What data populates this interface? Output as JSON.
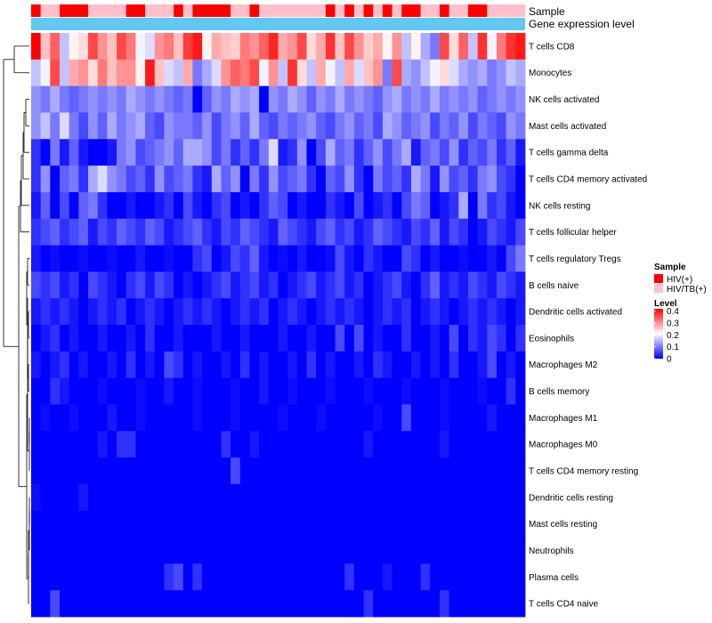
{
  "chart_data": {
    "type": "heatmap",
    "title": "",
    "annotations": {
      "sample_title": "Sample",
      "gene_title": "Gene expression level"
    },
    "sample_groups": [
      "HIV(+)",
      "HIV/TB(+)",
      "HIV/TB(+)",
      "HIV(+)",
      "HIV(+)",
      "HIV(+)",
      "HIV/TB(+)",
      "HIV/TB(+)",
      "HIV/TB(+)",
      "HIV/TB(+)",
      "HIV(+)",
      "HIV(+)",
      "HIV/TB(+)",
      "HIV/TB(+)",
      "HIV/TB(+)",
      "HIV(+)",
      "HIV/TB(+)",
      "HIV(+)",
      "HIV(+)",
      "HIV(+)",
      "HIV(+)",
      "HIV/TB(+)",
      "HIV/TB(+)",
      "HIV(+)",
      "HIV/TB(+)",
      "HIV/TB(+)",
      "HIV/TB(+)",
      "HIV/TB(+)",
      "HIV/TB(+)",
      "HIV/TB(+)",
      "HIV/TB(+)",
      "HIV(+)",
      "HIV/TB(+)",
      "HIV(+)",
      "HIV/TB(+)",
      "HIV(+)",
      "HIV/TB(+)",
      "HIV(+)",
      "HIV/TB(+)",
      "HIV(+)",
      "HIV(+)",
      "HIV/TB(+)",
      "HIV/TB(+)",
      "HIV(+)",
      "HIV/TB(+)",
      "HIV/TB(+)",
      "HIV(+)",
      "HIV(+)",
      "HIV/TB(+)",
      "HIV/TB(+)",
      "HIV/TB(+)",
      "HIV/TB(+)"
    ],
    "rows": [
      "T cells CD8",
      "Monocytes",
      "NK cells activated",
      "Mast cells activated",
      "T cells gamma delta",
      "T cells CD4 memory activated",
      "NK cells resting",
      "T cells follicular helper",
      "T cells regulatory  Tregs",
      "B cells naive",
      "Dendritic cells activated",
      "Eosinophils",
      "Macrophages M2",
      "B cells memory",
      "Macrophages M1",
      "Macrophages M0",
      "T cells CD4 memory resting",
      "Dendritic cells resting",
      "Mast cells resting",
      "Neutrophils",
      "Plasma cells",
      "T cells CD4 naive"
    ],
    "n_columns": 52,
    "legend": {
      "sample_title": "Sample",
      "sample_items": [
        {
          "label": "HIV(+)",
          "color": "#ff0000"
        },
        {
          "label": "HIV/TB(+)",
          "color": "#ffc0cb"
        }
      ],
      "level_title": "Level",
      "level_ticks": [
        "0.4",
        "0.3",
        "0.2",
        "0.1",
        "0"
      ],
      "level_tick_values": [
        0.4,
        0.3,
        0.2,
        0.1,
        0.0
      ],
      "range": [
        0,
        0.42
      ]
    },
    "colors": {
      "low": "#0000ff",
      "mid": "#ffffff",
      "high": "#ff0000",
      "gene_bar": "#63c7f0",
      "dendrogram": "#000000"
    },
    "values": {
      "T cells CD8": [
        0.42,
        0.26,
        0.34,
        0.16,
        0.22,
        0.24,
        0.36,
        0.3,
        0.26,
        0.36,
        0.32,
        0.2,
        0.18,
        0.3,
        0.32,
        0.26,
        0.37,
        0.4,
        0.22,
        0.28,
        0.26,
        0.25,
        0.32,
        0.3,
        0.34,
        0.39,
        0.28,
        0.3,
        0.36,
        0.24,
        0.28,
        0.38,
        0.26,
        0.36,
        0.3,
        0.25,
        0.28,
        0.22,
        0.3,
        0.16,
        0.22,
        0.14,
        0.1,
        0.36,
        0.24,
        0.34,
        0.16,
        0.38,
        0.2,
        0.32,
        0.38,
        0.4
      ],
      "Monocytes": [
        0.16,
        0.2,
        0.36,
        0.16,
        0.28,
        0.3,
        0.24,
        0.32,
        0.26,
        0.3,
        0.3,
        0.22,
        0.4,
        0.26,
        0.18,
        0.16,
        0.28,
        0.1,
        0.14,
        0.18,
        0.3,
        0.34,
        0.32,
        0.36,
        0.2,
        0.3,
        0.16,
        0.38,
        0.24,
        0.16,
        0.28,
        0.2,
        0.16,
        0.28,
        0.18,
        0.26,
        0.3,
        0.1,
        0.36,
        0.14,
        0.12,
        0.16,
        0.2,
        0.24,
        0.18,
        0.14,
        0.12,
        0.14,
        0.1,
        0.12,
        0.16,
        0.14
      ],
      "NK cells activated": [
        0.12,
        0.1,
        0.14,
        0.1,
        0.08,
        0.1,
        0.12,
        0.1,
        0.12,
        0.1,
        0.14,
        0.12,
        0.1,
        0.12,
        0.1,
        0.08,
        0.1,
        0.0,
        0.08,
        0.12,
        0.1,
        0.14,
        0.12,
        0.14,
        0.0,
        0.12,
        0.1,
        0.14,
        0.12,
        0.08,
        0.12,
        0.1,
        0.14,
        0.1,
        0.12,
        0.1,
        0.08,
        0.12,
        0.14,
        0.1,
        0.12,
        0.1,
        0.14,
        0.1,
        0.12,
        0.1,
        0.12,
        0.08,
        0.1,
        0.12,
        0.1,
        0.12
      ],
      "Mast cells activated": [
        0.12,
        0.16,
        0.1,
        0.18,
        0.1,
        0.06,
        0.12,
        0.08,
        0.14,
        0.1,
        0.12,
        0.14,
        0.08,
        0.06,
        0.12,
        0.1,
        0.1,
        0.08,
        0.12,
        0.06,
        0.1,
        0.12,
        0.08,
        0.14,
        0.08,
        0.06,
        0.1,
        0.08,
        0.1,
        0.12,
        0.08,
        0.06,
        0.1,
        0.12,
        0.08,
        0.1,
        0.06,
        0.14,
        0.12,
        0.08,
        0.1,
        0.12,
        0.06,
        0.1,
        0.08,
        0.12,
        0.06,
        0.1,
        0.08,
        0.06,
        0.12,
        0.1
      ],
      "T cells gamma delta": [
        0.04,
        0.0,
        0.1,
        0.02,
        0.08,
        0.02,
        0.0,
        0.0,
        0.02,
        0.1,
        0.12,
        0.06,
        0.08,
        0.1,
        0.12,
        0.08,
        0.14,
        0.14,
        0.12,
        0.06,
        0.1,
        0.04,
        0.08,
        0.04,
        0.1,
        0.18,
        0.02,
        0.04,
        0.12,
        0.0,
        0.06,
        0.14,
        0.08,
        0.1,
        0.04,
        0.08,
        0.12,
        0.06,
        0.1,
        0.14,
        0.02,
        0.08,
        0.1,
        0.06,
        0.12,
        0.04,
        0.08,
        0.06,
        0.1,
        0.04,
        0.08,
        0.02
      ],
      "T cells CD4 memory activated": [
        0.04,
        0.12,
        0.0,
        0.08,
        0.1,
        0.04,
        0.14,
        0.18,
        0.12,
        0.1,
        0.06,
        0.08,
        0.04,
        0.12,
        0.06,
        0.08,
        0.1,
        0.04,
        0.02,
        0.14,
        0.08,
        0.12,
        0.0,
        0.1,
        0.04,
        0.12,
        0.06,
        0.08,
        0.1,
        0.04,
        0.0,
        0.08,
        0.06,
        0.12,
        0.04,
        0.0,
        0.1,
        0.06,
        0.08,
        0.04,
        0.14,
        0.1,
        0.02,
        0.12,
        0.06,
        0.08,
        0.04,
        0.1,
        0.12,
        0.06,
        0.04,
        0.0
      ],
      "NK cells resting": [
        0.02,
        0.08,
        0.0,
        0.06,
        0.0,
        0.08,
        0.1,
        0.04,
        0.0,
        0.0,
        0.02,
        0.0,
        0.0,
        0.02,
        0.04,
        0.0,
        0.06,
        0.02,
        0.0,
        0.04,
        0.06,
        0.0,
        0.02,
        0.0,
        0.04,
        0.08,
        0.06,
        0.0,
        0.02,
        0.0,
        0.0,
        0.04,
        0.02,
        0.0,
        0.06,
        0.0,
        0.02,
        0.04,
        0.0,
        0.06,
        0.1,
        0.08,
        0.0,
        0.02,
        0.04,
        0.14,
        0.0,
        0.1,
        0.04,
        0.06,
        0.02,
        0.0
      ],
      "T cells follicular helper": [
        0.04,
        0.06,
        0.08,
        0.04,
        0.06,
        0.08,
        0.02,
        0.06,
        0.04,
        0.08,
        0.06,
        0.04,
        0.08,
        0.06,
        0.02,
        0.04,
        0.06,
        0.08,
        0.04,
        0.02,
        0.06,
        0.04,
        0.08,
        0.06,
        0.04,
        0.02,
        0.08,
        0.06,
        0.04,
        0.02,
        0.06,
        0.08,
        0.04,
        0.06,
        0.02,
        0.04,
        0.08,
        0.06,
        0.04,
        0.02,
        0.06,
        0.04,
        0.08,
        0.02,
        0.06,
        0.04,
        0.0,
        0.02,
        0.06,
        0.04,
        0.02,
        0.06
      ],
      "T cells regulatory  Tregs": [
        0.02,
        0.0,
        0.01,
        0.0,
        0.0,
        0.01,
        0.0,
        0.0,
        0.01,
        0.0,
        0.0,
        0.02,
        0.0,
        0.0,
        0.01,
        0.0,
        0.0,
        0.04,
        0.06,
        0.0,
        0.02,
        0.06,
        0.04,
        0.08,
        0.02,
        0.0,
        0.01,
        0.0,
        0.02,
        0.0,
        0.0,
        0.01,
        0.06,
        0.02,
        0.0,
        0.04,
        0.02,
        0.0,
        0.0,
        0.06,
        0.04,
        0.0,
        0.02,
        0.0,
        0.0,
        0.01,
        0.0,
        0.0,
        0.02,
        0.0,
        0.06,
        0.1
      ],
      "B cells naive": [
        0.06,
        0.04,
        0.06,
        0.02,
        0.04,
        0.0,
        0.06,
        0.04,
        0.02,
        0.0,
        0.04,
        0.06,
        0.02,
        0.06,
        0.04,
        0.0,
        0.02,
        0.0,
        0.02,
        0.04,
        0.06,
        0.02,
        0.04,
        0.06,
        0.02,
        0.04,
        0.0,
        0.02,
        0.04,
        0.06,
        0.02,
        0.04,
        0.06,
        0.02,
        0.04,
        0.0,
        0.02,
        0.04,
        0.06,
        0.02,
        0.0,
        0.04,
        0.08,
        0.02,
        0.04,
        0.02,
        0.06,
        0.04,
        0.02,
        0.06,
        0.04,
        0.02
      ],
      "Dendritic cells activated": [
        0.02,
        0.04,
        0.02,
        0.04,
        0.02,
        0.0,
        0.02,
        0.04,
        0.02,
        0.04,
        0.0,
        0.02,
        0.04,
        0.02,
        0.0,
        0.02,
        0.04,
        0.02,
        0.04,
        0.02,
        0.0,
        0.02,
        0.04,
        0.02,
        0.04,
        0.0,
        0.02,
        0.04,
        0.02,
        0.0,
        0.02,
        0.04,
        0.02,
        0.04,
        0.02,
        0.0,
        0.02,
        0.04,
        0.02,
        0.04,
        0.0,
        0.02,
        0.04,
        0.02,
        0.0,
        0.02,
        0.04,
        0.02,
        0.04,
        0.02,
        0.0,
        0.02
      ],
      "Eosinophils": [
        0.0,
        0.02,
        0.04,
        0.0,
        0.02,
        0.0,
        0.0,
        0.02,
        0.0,
        0.0,
        0.02,
        0.0,
        0.04,
        0.0,
        0.0,
        0.02,
        0.0,
        0.0,
        0.0,
        0.02,
        0.0,
        0.0,
        0.02,
        0.0,
        0.0,
        0.0,
        0.02,
        0.0,
        0.0,
        0.02,
        0.0,
        0.0,
        0.06,
        0.0,
        0.06,
        0.0,
        0.02,
        0.0,
        0.0,
        0.04,
        0.0,
        0.0,
        0.02,
        0.0,
        0.06,
        0.0,
        0.04,
        0.02,
        0.06,
        0.04,
        0.0,
        0.04
      ],
      "Macrophages M2": [
        0.02,
        0.0,
        0.02,
        0.04,
        0.0,
        0.02,
        0.0,
        0.0,
        0.02,
        0.0,
        0.04,
        0.0,
        0.02,
        0.0,
        0.06,
        0.04,
        0.0,
        0.02,
        0.0,
        0.0,
        0.02,
        0.0,
        0.04,
        0.0,
        0.02,
        0.0,
        0.0,
        0.02,
        0.0,
        0.04,
        0.0,
        0.02,
        0.0,
        0.0,
        0.02,
        0.0,
        0.04,
        0.02,
        0.0,
        0.0,
        0.02,
        0.0,
        0.02,
        0.0,
        0.04,
        0.0,
        0.0,
        0.02,
        0.06,
        0.0,
        0.02,
        0.0
      ],
      "B cells memory": [
        0.0,
        0.0,
        0.04,
        0.02,
        0.0,
        0.0,
        0.0,
        0.01,
        0.0,
        0.0,
        0.0,
        0.01,
        0.0,
        0.0,
        0.02,
        0.0,
        0.0,
        0.01,
        0.0,
        0.0,
        0.0,
        0.01,
        0.0,
        0.0,
        0.02,
        0.0,
        0.0,
        0.01,
        0.0,
        0.0,
        0.0,
        0.01,
        0.0,
        0.0,
        0.0,
        0.01,
        0.0,
        0.0,
        0.0,
        0.01,
        0.0,
        0.0,
        0.0,
        0.01,
        0.0,
        0.0,
        0.0,
        0.01,
        0.0,
        0.0,
        0.04,
        0.0
      ],
      "Macrophages M1": [
        0.0,
        0.01,
        0.0,
        0.0,
        0.01,
        0.0,
        0.0,
        0.0,
        0.02,
        0.0,
        0.0,
        0.01,
        0.0,
        0.0,
        0.0,
        0.0,
        0.0,
        0.01,
        0.0,
        0.0,
        0.0,
        0.01,
        0.0,
        0.0,
        0.0,
        0.0,
        0.01,
        0.0,
        0.0,
        0.0,
        0.01,
        0.0,
        0.0,
        0.0,
        0.0,
        0.0,
        0.01,
        0.0,
        0.0,
        0.06,
        0.0,
        0.0,
        0.0,
        0.01,
        0.0,
        0.0,
        0.0,
        0.0,
        0.02,
        0.0,
        0.0,
        0.0
      ],
      "Macrophages M0": [
        0.0,
        0.0,
        0.0,
        0.0,
        0.0,
        0.0,
        0.0,
        0.02,
        0.0,
        0.04,
        0.04,
        0.0,
        0.0,
        0.0,
        0.0,
        0.0,
        0.0,
        0.0,
        0.0,
        0.0,
        0.04,
        0.0,
        0.0,
        0.02,
        0.0,
        0.0,
        0.0,
        0.0,
        0.0,
        0.0,
        0.0,
        0.0,
        0.0,
        0.0,
        0.0,
        0.02,
        0.0,
        0.0,
        0.0,
        0.0,
        0.0,
        0.0,
        0.0,
        0.02,
        0.0,
        0.0,
        0.0,
        0.0,
        0.0,
        0.0,
        0.0,
        0.0
      ],
      "T cells CD4 memory resting": [
        0.0,
        0.0,
        0.0,
        0.0,
        0.0,
        0.0,
        0.0,
        0.0,
        0.0,
        0.0,
        0.0,
        0.0,
        0.0,
        0.0,
        0.0,
        0.0,
        0.0,
        0.0,
        0.0,
        0.0,
        0.0,
        0.06,
        0.0,
        0.0,
        0.0,
        0.0,
        0.0,
        0.0,
        0.0,
        0.0,
        0.0,
        0.0,
        0.0,
        0.0,
        0.0,
        0.0,
        0.0,
        0.0,
        0.0,
        0.0,
        0.0,
        0.0,
        0.0,
        0.0,
        0.0,
        0.0,
        0.0,
        0.0,
        0.0,
        0.0,
        0.0,
        0.0
      ],
      "Dendritic cells resting": [
        0.01,
        0.0,
        0.0,
        0.0,
        0.0,
        0.02,
        0.0,
        0.0,
        0.0,
        0.0,
        0.0,
        0.0,
        0.0,
        0.0,
        0.0,
        0.0,
        0.0,
        0.0,
        0.0,
        0.0,
        0.0,
        0.0,
        0.0,
        0.0,
        0.0,
        0.0,
        0.0,
        0.0,
        0.0,
        0.0,
        0.0,
        0.0,
        0.0,
        0.0,
        0.0,
        0.0,
        0.0,
        0.0,
        0.0,
        0.0,
        0.0,
        0.0,
        0.0,
        0.0,
        0.0,
        0.0,
        0.0,
        0.0,
        0.0,
        0.0,
        0.0,
        0.0
      ],
      "Mast cells resting": [
        0.0,
        0.0,
        0.0,
        0.0,
        0.0,
        0.0,
        0.0,
        0.0,
        0.0,
        0.0,
        0.0,
        0.0,
        0.0,
        0.0,
        0.0,
        0.0,
        0.0,
        0.0,
        0.0,
        0.0,
        0.0,
        0.0,
        0.0,
        0.0,
        0.0,
        0.0,
        0.0,
        0.0,
        0.0,
        0.0,
        0.0,
        0.0,
        0.0,
        0.0,
        0.0,
        0.0,
        0.0,
        0.0,
        0.0,
        0.0,
        0.0,
        0.0,
        0.0,
        0.0,
        0.0,
        0.0,
        0.0,
        0.0,
        0.0,
        0.0,
        0.0,
        0.0
      ],
      "Neutrophils": [
        0.0,
        0.0,
        0.0,
        0.0,
        0.0,
        0.0,
        0.0,
        0.0,
        0.0,
        0.0,
        0.0,
        0.0,
        0.0,
        0.0,
        0.0,
        0.0,
        0.0,
        0.0,
        0.0,
        0.0,
        0.0,
        0.0,
        0.0,
        0.0,
        0.0,
        0.0,
        0.0,
        0.0,
        0.0,
        0.0,
        0.0,
        0.0,
        0.0,
        0.0,
        0.0,
        0.0,
        0.0,
        0.0,
        0.0,
        0.0,
        0.0,
        0.0,
        0.0,
        0.0,
        0.0,
        0.0,
        0.0,
        0.0,
        0.0,
        0.0,
        0.0,
        0.0
      ],
      "Plasma cells": [
        0.0,
        0.0,
        0.0,
        0.0,
        0.0,
        0.0,
        0.0,
        0.0,
        0.0,
        0.0,
        0.0,
        0.0,
        0.0,
        0.0,
        0.04,
        0.06,
        0.0,
        0.04,
        0.0,
        0.0,
        0.0,
        0.0,
        0.0,
        0.0,
        0.0,
        0.0,
        0.0,
        0.0,
        0.0,
        0.0,
        0.0,
        0.0,
        0.0,
        0.04,
        0.0,
        0.0,
        0.0,
        0.02,
        0.0,
        0.0,
        0.0,
        0.04,
        0.0,
        0.0,
        0.0,
        0.0,
        0.0,
        0.0,
        0.0,
        0.0,
        0.0,
        0.0
      ],
      "T cells CD4 naive": [
        0.0,
        0.0,
        0.06,
        0.0,
        0.0,
        0.0,
        0.0,
        0.0,
        0.0,
        0.0,
        0.0,
        0.0,
        0.0,
        0.0,
        0.0,
        0.0,
        0.0,
        0.0,
        0.0,
        0.0,
        0.0,
        0.0,
        0.0,
        0.0,
        0.0,
        0.0,
        0.0,
        0.0,
        0.0,
        0.0,
        0.0,
        0.0,
        0.0,
        0.0,
        0.0,
        0.04,
        0.0,
        0.0,
        0.0,
        0.0,
        0.0,
        0.0,
        0.0,
        0.04,
        0.0,
        0.0,
        0.0,
        0.0,
        0.0,
        0.0,
        0.0,
        0.0
      ]
    }
  }
}
